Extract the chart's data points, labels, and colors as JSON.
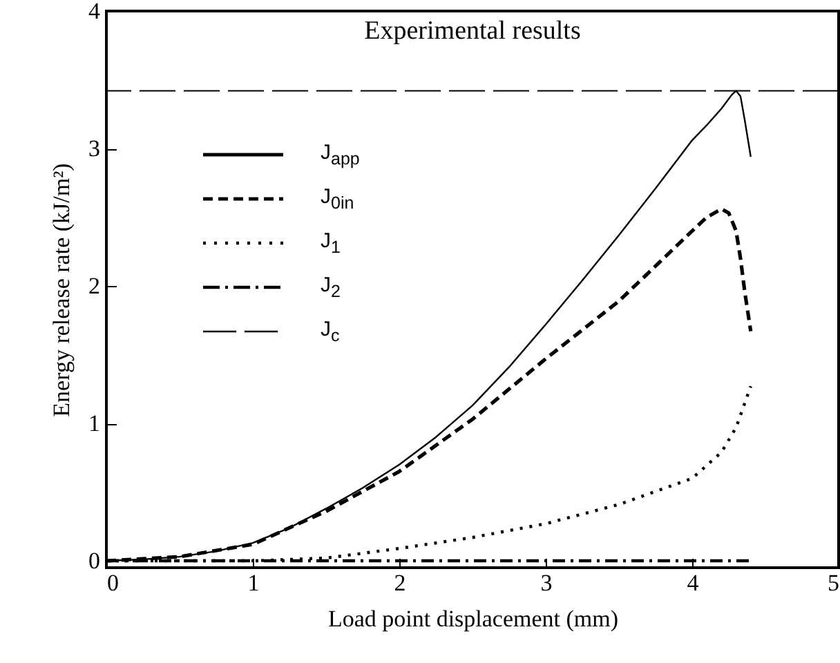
{
  "chart_data": {
    "type": "line",
    "title": "Experimental results",
    "xlabel": "Load point displacement (mm)",
    "ylabel": "Energy release rate (kJ/m²)",
    "xlim": [
      0,
      5
    ],
    "xticks": [
      0,
      1,
      2,
      3,
      4,
      5
    ],
    "ylim": [
      -0.05,
      4
    ],
    "yticks": [
      0,
      1,
      2,
      3,
      4
    ],
    "legend": "top left",
    "series": [
      {
        "name": "J$_{app}$",
        "color": "#000000",
        "line_style": "solid",
        "x": [
          0,
          0.25,
          0.5,
          0.75,
          1,
          1.25,
          1.5,
          1.75,
          2,
          2.25,
          2.5,
          2.75,
          3,
          3.25,
          3.5,
          3.75,
          4,
          4.1,
          4.2,
          4.27,
          4.3,
          4.33,
          4.36,
          4.4
        ],
        "values": [
          0,
          0.01,
          0.03,
          0.07,
          0.13,
          0.24,
          0.38,
          0.53,
          0.7,
          0.9,
          1.13,
          1.41,
          1.72,
          2.04,
          2.37,
          2.71,
          3.06,
          3.17,
          3.29,
          3.39,
          3.42,
          3.38,
          3.2,
          2.94
        ]
      },
      {
        "name": "J$_{0in}$",
        "color": "#000000",
        "line_style": "dashed",
        "x": [
          0,
          0.5,
          1,
          1.5,
          2,
          2.5,
          3,
          3.5,
          4,
          4.1,
          4.2,
          4.25,
          4.3,
          4.33,
          4.36,
          4.4
        ],
        "values": [
          0,
          0.03,
          0.12,
          0.36,
          0.65,
          1.03,
          1.47,
          1.89,
          2.4,
          2.5,
          2.56,
          2.53,
          2.4,
          2.2,
          1.95,
          1.67
        ]
      },
      {
        "name": "J$_{1}$",
        "color": "#000000",
        "line_style": "dotted",
        "x": [
          0,
          1,
          1.5,
          2,
          2.5,
          3,
          3.5,
          4,
          4.2,
          4.3,
          4.4
        ],
        "values": [
          0,
          0,
          0.02,
          0.09,
          0.17,
          0.27,
          0.41,
          0.6,
          0.79,
          0.97,
          1.27
        ]
      },
      {
        "name": "J$_{2}$",
        "color": "#000000",
        "line_style": "dashdot",
        "x": [
          0,
          1,
          2,
          3,
          4,
          4.4
        ],
        "values": [
          0,
          0,
          0,
          0,
          0,
          0
        ]
      }
    ],
    "ref_lines": [
      {
        "axis": "y",
        "value": 3.42,
        "label": "J$_{c}$",
        "line_style": "dashed",
        "color": "#000000"
      }
    ]
  }
}
